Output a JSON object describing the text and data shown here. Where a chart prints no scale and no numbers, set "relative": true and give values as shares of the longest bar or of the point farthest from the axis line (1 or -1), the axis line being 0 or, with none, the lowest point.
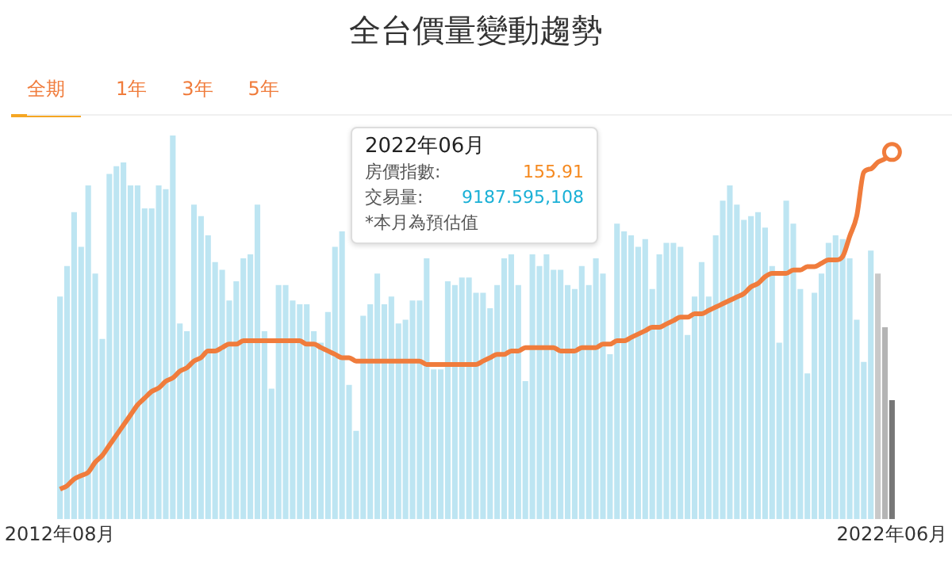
{
  "chart_data": {
    "type": "bar",
    "relative": true,
    "title": "全台價量變動趨勢",
    "annotations": [
      "全期",
      "1年",
      "3年",
      "5年",
      "2022年06月",
      "房價指數:",
      "155.91",
      "交易量:",
      "9187.595,108",
      "*本月為預估值"
    ],
    "categories": [
      "2012年08月",
      null,
      null,
      null,
      null,
      null,
      null,
      null,
      null,
      null,
      null,
      null,
      null,
      null,
      null,
      null,
      null,
      null,
      null,
      null,
      null,
      null,
      null,
      null,
      null,
      null,
      null,
      null,
      null,
      null,
      null,
      null,
      null,
      null,
      null,
      null,
      null,
      null,
      null,
      null,
      null,
      null,
      null,
      null,
      null,
      null,
      null,
      null,
      null,
      null,
      null,
      null,
      null,
      null,
      null,
      null,
      null,
      null,
      null,
      null,
      null,
      null,
      null,
      null,
      null,
      null,
      null,
      null,
      null,
      null,
      null,
      null,
      null,
      null,
      null,
      null,
      null,
      null,
      null,
      null,
      null,
      null,
      null,
      null,
      null,
      null,
      null,
      null,
      null,
      null,
      null,
      null,
      null,
      null,
      null,
      null,
      null,
      null,
      null,
      null,
      null,
      null,
      null,
      null,
      null,
      null,
      null,
      null,
      null,
      null,
      null,
      null,
      null,
      null,
      null,
      null,
      null,
      null,
      "2022年06月"
    ],
    "legend": false,
    "grid": false,
    "series": [
      {
        "colors": [
          "#bde5f2",
          "#bde5f2",
          "#bde5f2",
          "#bde5f2",
          "#bde5f2",
          "#bde5f2",
          "#bde5f2",
          "#bde5f2",
          "#bde5f2",
          "#bde5f2",
          "#bde5f2",
          "#bde5f2",
          "#bde5f2",
          "#bde5f2",
          "#bde5f2",
          "#bde5f2",
          "#bde5f2",
          "#bde5f2",
          "#bde5f2",
          "#bde5f2",
          "#bde5f2",
          "#bde5f2",
          "#bde5f2",
          "#bde5f2",
          "#bde5f2",
          "#bde5f2",
          "#bde5f2",
          "#bde5f2",
          "#bde5f2",
          "#bde5f2",
          "#bde5f2",
          "#bde5f2",
          "#bde5f2",
          "#bde5f2",
          "#bde5f2",
          "#bde5f2",
          "#bde5f2",
          "#bde5f2",
          "#bde5f2",
          "#bde5f2",
          "#bde5f2",
          "#bde5f2",
          "#bde5f2",
          "#bde5f2",
          "#bde5f2",
          "#bde5f2",
          "#bde5f2",
          "#bde5f2",
          "#bde5f2",
          "#bde5f2",
          "#bde5f2",
          "#bde5f2",
          "#bde5f2",
          "#bde5f2",
          "#bde5f2",
          "#bde5f2",
          "#bde5f2",
          "#bde5f2",
          "#bde5f2",
          "#bde5f2",
          "#bde5f2",
          "#bde5f2",
          "#bde5f2",
          "#bde5f2",
          "#bde5f2",
          "#bde5f2",
          "#bde5f2",
          "#bde5f2",
          "#bde5f2",
          "#bde5f2",
          "#bde5f2",
          "#bde5f2",
          "#bde5f2",
          "#bde5f2",
          "#bde5f2",
          "#bde5f2",
          "#bde5f2",
          "#bde5f2",
          "#bde5f2",
          "#bde5f2",
          "#bde5f2",
          "#bde5f2",
          "#bde5f2",
          "#bde5f2",
          "#bde5f2",
          "#bde5f2",
          "#bde5f2",
          "#bde5f2",
          "#bde5f2",
          "#bde5f2",
          "#bde5f2",
          "#bde5f2",
          "#bde5f2",
          "#bde5f2",
          "#bde5f2",
          "#bde5f2",
          "#bde5f2",
          "#bde5f2",
          "#bde5f2",
          "#bde5f2",
          "#bde5f2",
          "#bde5f2",
          "#bde5f2",
          "#bde5f2",
          "#bde5f2",
          "#bde5f2",
          "#bde5f2",
          "#bde5f2",
          "#bde5f2",
          "#bde5f2",
          "#bde5f2",
          "#bde5f2",
          "#bde5f2",
          "#bde5f2",
          "#bde5f2",
          "#bde5f2",
          "#c8c8c8",
          "#b4b4b4",
          "#777777"
        ],
        "values": [
          0.58,
          0.66,
          0.8,
          0.71,
          0.87,
          0.64,
          0.47,
          0.9,
          0.92,
          0.93,
          0.87,
          0.87,
          0.81,
          0.81,
          0.87,
          0.86,
          1,
          0.51,
          0.49,
          0.82,
          0.79,
          0.74,
          0.67,
          0.65,
          0.57,
          0.62,
          0.68,
          0.69,
          0.82,
          0.49,
          0.34,
          0.61,
          0.61,
          0.57,
          0.56,
          0.56,
          0.49,
          0.46,
          0.54,
          0.71,
          0.75,
          0.35,
          0.23,
          0.53,
          0.56,
          0.64,
          0.56,
          0.58,
          0.51,
          0.52,
          0.57,
          0.57,
          0.68,
          0.39,
          0.39,
          0.62,
          0.61,
          0.63,
          0.63,
          0.59,
          0.59,
          0.55,
          0.61,
          0.68,
          0.69,
          0.61,
          0.36,
          0.69,
          0.66,
          0.69,
          0.65,
          0.65,
          0.61,
          0.6,
          0.66,
          0.61,
          0.68,
          0.64,
          0.43,
          0.77,
          0.75,
          0.74,
          0.71,
          0.73,
          0.6,
          0.69,
          0.72,
          0.72,
          0.71,
          0.48,
          0.58,
          0.67,
          0.58,
          0.74,
          0.83,
          0.87,
          0.82,
          0.78,
          0.79,
          0.8,
          0.76,
          0.66,
          0.46,
          0.83,
          0.77,
          0.6,
          0.38,
          0.59,
          0.64,
          0.72,
          0.74,
          0.73,
          0.68,
          0.52,
          0.41,
          0.7,
          0.64,
          0.5,
          0.31
        ]
      },
      {
        "type": "line",
        "axis": "y2",
        "color": "#f07c3c",
        "values": [
          0,
          0.01,
          0.03,
          0.04,
          0.05,
          0.08,
          0.1,
          0.13,
          0.16,
          0.19,
          0.22,
          0.25,
          0.27,
          0.29,
          0.3,
          0.32,
          0.33,
          0.35,
          0.36,
          0.38,
          0.39,
          0.41,
          0.41,
          0.42,
          0.43,
          0.43,
          0.44,
          0.44,
          0.44,
          0.44,
          0.44,
          0.44,
          0.44,
          0.44,
          0.44,
          0.43,
          0.43,
          0.42,
          0.41,
          0.4,
          0.39,
          0.39,
          0.38,
          0.38,
          0.38,
          0.38,
          0.38,
          0.38,
          0.38,
          0.38,
          0.38,
          0.38,
          0.37,
          0.37,
          0.37,
          0.37,
          0.37,
          0.37,
          0.37,
          0.37,
          0.38,
          0.39,
          0.4,
          0.4,
          0.41,
          0.41,
          0.42,
          0.42,
          0.42,
          0.42,
          0.42,
          0.41,
          0.41,
          0.41,
          0.42,
          0.42,
          0.42,
          0.43,
          0.43,
          0.44,
          0.44,
          0.45,
          0.46,
          0.47,
          0.48,
          0.48,
          0.49,
          0.5,
          0.51,
          0.51,
          0.52,
          0.52,
          0.53,
          0.54,
          0.55,
          0.56,
          0.57,
          0.58,
          0.6,
          0.61,
          0.63,
          0.64,
          0.64,
          0.64,
          0.65,
          0.65,
          0.66,
          0.66,
          0.67,
          0.68,
          0.68,
          0.69,
          0.75,
          0.81,
          0.94,
          0.95,
          0.97,
          0.98,
          1
        ]
      }
    ]
  }
}
